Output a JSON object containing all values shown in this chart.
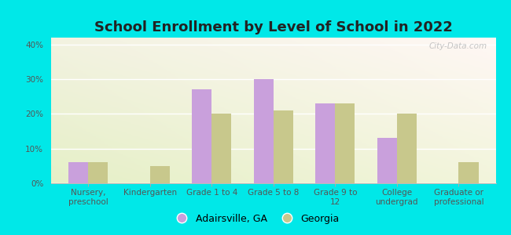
{
  "title": "School Enrollment by Level of School in 2022",
  "categories": [
    "Nursery,\npreschool",
    "Kindergarten",
    "Grade 1 to 4",
    "Grade 5 to 8",
    "Grade 9 to\n12",
    "College\nundergrad",
    "Graduate or\nprofessional"
  ],
  "adairsville": [
    6,
    0,
    27,
    30,
    23,
    13,
    0
  ],
  "georgia": [
    6,
    5,
    20,
    21,
    23,
    20,
    6
  ],
  "adairsville_color": "#c9a0dc",
  "georgia_color": "#c8c88c",
  "background_outer": "#00e8e8",
  "ylim": [
    0,
    42
  ],
  "yticks": [
    0,
    10,
    20,
    30,
    40
  ],
  "yticklabels": [
    "0%",
    "10%",
    "20%",
    "30%",
    "40%"
  ],
  "legend_labels": [
    "Adairsville, GA",
    "Georgia"
  ],
  "bar_width": 0.32,
  "title_fontsize": 13,
  "tick_fontsize": 7.5,
  "legend_fontsize": 9,
  "watermark": "City-Data.com"
}
